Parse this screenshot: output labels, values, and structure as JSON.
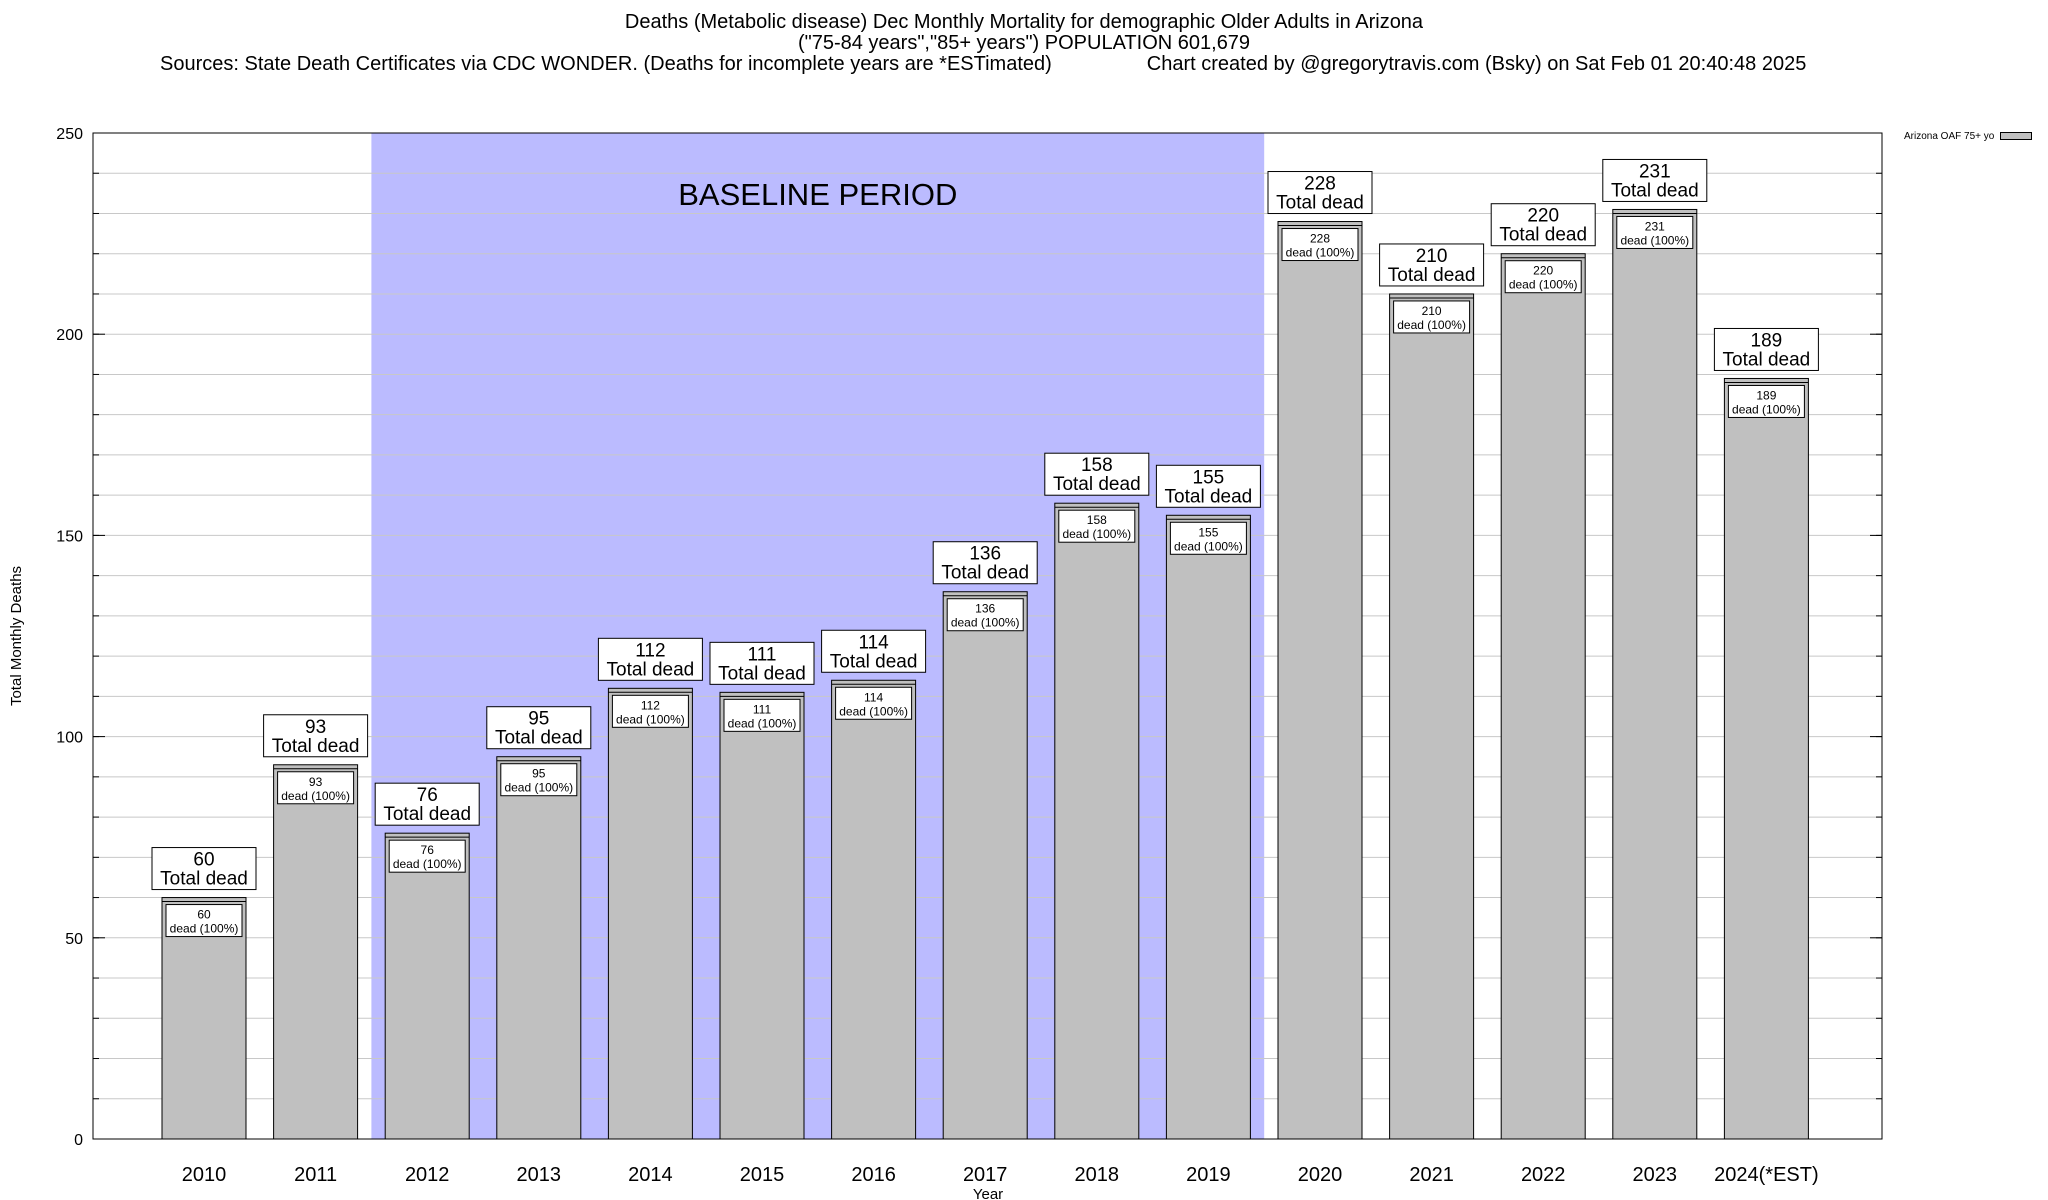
{
  "title": {
    "line1": "Deaths (Metabolic disease) Dec Monthly Mortality for demographic Older Adults in Arizona",
    "line2": "(\"75-84 years\",\"85+ years\") POPULATION 601,679",
    "sources": "Sources: State Death Certificates via CDC WONDER. (Deaths for incomplete years are *ESTimated)",
    "credit": "Chart created by @gregorytravis.com (Bsky) on Sat Feb 01 20:40:48 2025"
  },
  "legend": {
    "label": "Arizona OAF 75+ yo",
    "position": "top-right"
  },
  "chart_data": {
    "type": "bar",
    "categories": [
      "2010",
      "2011",
      "2012",
      "2013",
      "2014",
      "2015",
      "2016",
      "2017",
      "2018",
      "2019",
      "2020",
      "2021",
      "2022",
      "2023",
      "2024(*EST)"
    ],
    "series": [
      {
        "name": "Arizona OAF 75+ yo",
        "values": [
          60,
          93,
          76,
          95,
          112,
          111,
          114,
          136,
          158,
          155,
          228,
          210,
          220,
          231,
          189
        ]
      }
    ],
    "outer_label_suffix": "Total dead",
    "inner_label_suffix": "dead (100%)",
    "xlabel": "Year",
    "ylabel": "Total Monthly Deaths",
    "ylim": [
      0,
      250
    ],
    "yticks": [
      0,
      50,
      100,
      150,
      200,
      250
    ],
    "grid": true,
    "baseline": {
      "label": "BASELINE PERIOD",
      "from": "2012",
      "to": "2019",
      "color": "#bbbbff"
    },
    "colors": {
      "bar": "#c0c0c0",
      "bar_edge": "#000000",
      "grid": "#c8c8c8"
    }
  }
}
